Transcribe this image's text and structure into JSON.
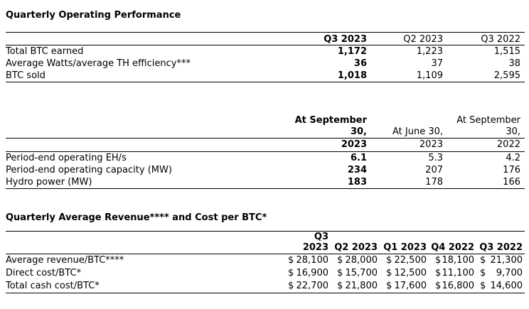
{
  "page": {
    "background": "#ffffff",
    "text_color": "#000000",
    "rule_color": "#000000"
  },
  "s1": {
    "title": "Quarterly Operating Performance",
    "table": {
      "columns": [
        "Q3 2023",
        "Q2 2023",
        "Q3 2022"
      ],
      "rows": [
        {
          "label": "Total BTC earned",
          "values": [
            "1,172",
            "1,223",
            "1,515"
          ]
        },
        {
          "label": "Average Watts/average TH efficiency***",
          "values": [
            "36",
            "37",
            "38"
          ]
        },
        {
          "label": "BTC sold",
          "values": [
            "1,018",
            "1,109",
            "2,595"
          ]
        }
      ]
    }
  },
  "s2": {
    "table": {
      "columns": [
        {
          "line1": "At September",
          "line2": "30,",
          "year": "2023"
        },
        {
          "line2": "At June 30,",
          "year": "2023"
        },
        {
          "line1": "At September",
          "line2": "30,",
          "year": "2022"
        }
      ],
      "rows": [
        {
          "label": "Period-end operating EH/s",
          "values": [
            "6.1",
            "5.3",
            "4.2"
          ]
        },
        {
          "label": "Period-end operating capacity (MW)",
          "values": [
            "234",
            "207",
            "176"
          ]
        },
        {
          "label": "Hydro power (MW)",
          "values": [
            "183",
            "178",
            "166"
          ]
        }
      ]
    }
  },
  "s3": {
    "title": "Quarterly Average Revenue**** and Cost per BTC*",
    "currency": "$",
    "table": {
      "columns": [
        {
          "line1": "Q3",
          "line2": "2023"
        },
        {
          "line2": "Q2 2023"
        },
        {
          "line2": "Q1 2023"
        },
        {
          "line2": "Q4 2022"
        },
        {
          "line2": "Q3 2022"
        }
      ],
      "rows": [
        {
          "label": "Average revenue/BTC****",
          "values": [
            "28,100",
            "28,000",
            "22,500",
            "18,100",
            "21,300"
          ]
        },
        {
          "label": "Direct cost/BTC*",
          "values": [
            "16,900",
            "15,700",
            "12,500",
            "11,100",
            "9,700"
          ]
        },
        {
          "label": "Total cash cost/BTC*",
          "values": [
            "22,700",
            "21,800",
            "17,600",
            "16,800",
            "14,600"
          ]
        }
      ]
    }
  }
}
